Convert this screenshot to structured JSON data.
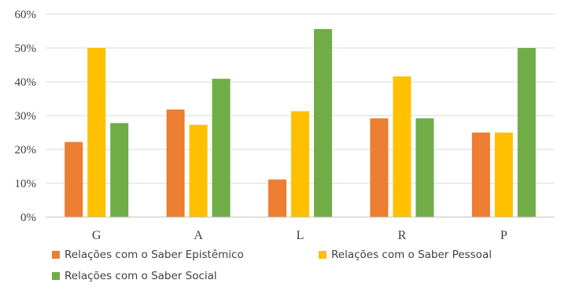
{
  "chart_data": {
    "type": "bar",
    "categories": [
      "G",
      "A",
      "L",
      "R",
      "P"
    ],
    "series": [
      {
        "name": "Relações com o Saber Epistêmico",
        "color": "#ED7D31",
        "values": [
          22.2,
          31.8,
          11.1,
          29.2,
          25.0
        ]
      },
      {
        "name": "Relações com o Saber Pessoal",
        "color": "#FFC000",
        "values": [
          50.0,
          27.3,
          31.3,
          41.6,
          25.0
        ]
      },
      {
        "name": "Relações com o Saber Social",
        "color": "#70AD47",
        "values": [
          27.8,
          40.9,
          55.6,
          29.2,
          50.0
        ]
      }
    ],
    "ylim": [
      0,
      60
    ],
    "yticks": [
      "0%",
      "10%",
      "20%",
      "30%",
      "40%",
      "50%",
      "60%"
    ],
    "ytick_values": [
      0,
      10,
      20,
      30,
      40,
      50,
      60
    ],
    "grid": true,
    "legend_position": "bottom"
  }
}
